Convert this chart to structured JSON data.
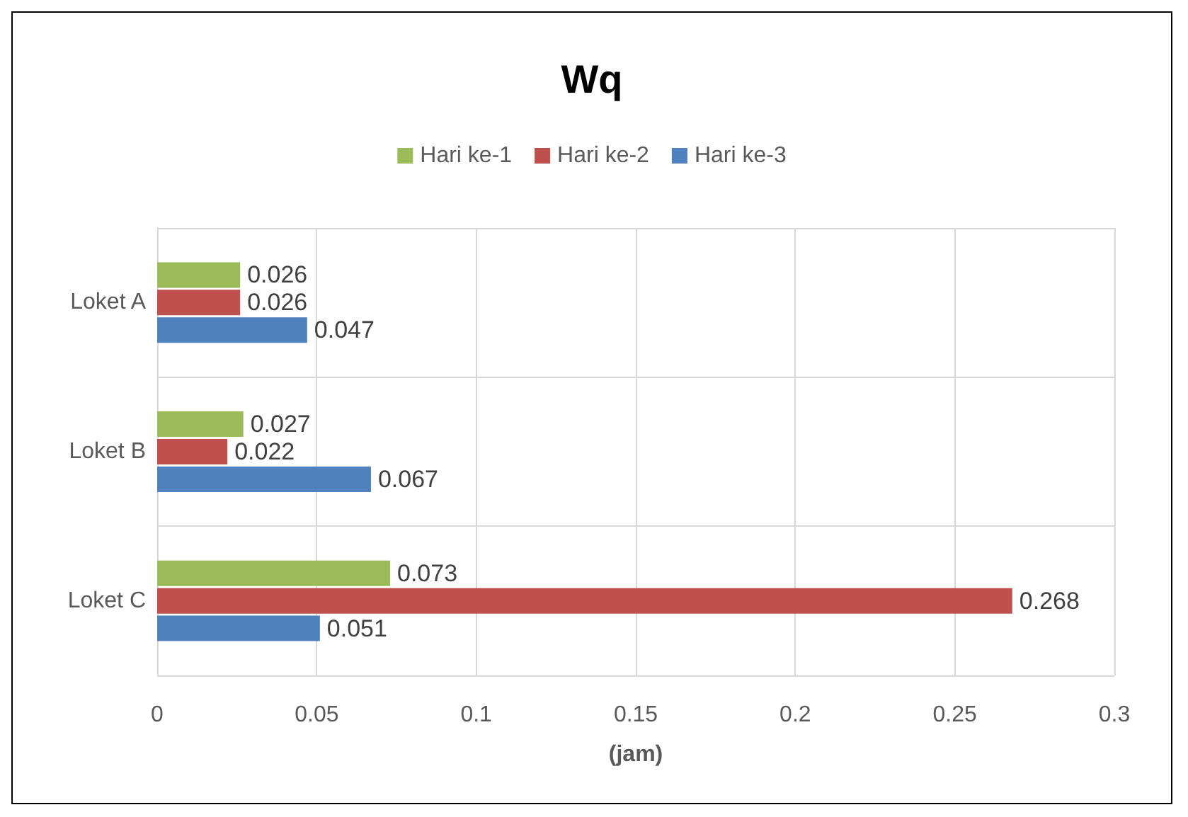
{
  "chart_data": {
    "type": "bar",
    "orientation": "horizontal",
    "title": "Wq",
    "xlabel": "(jam)",
    "categories": [
      "Loket A",
      "Loket B",
      "Loket C"
    ],
    "series": [
      {
        "name": "Hari ke-1",
        "color": "#9bbb59",
        "values": [
          0.026,
          0.027,
          0.073
        ]
      },
      {
        "name": "Hari ke-2",
        "color": "#c0504d",
        "values": [
          0.026,
          0.022,
          0.268
        ]
      },
      {
        "name": "Hari ke-3",
        "color": "#4f81bd",
        "values": [
          0.047,
          0.067,
          0.051
        ]
      }
    ],
    "xlim": [
      0,
      0.3
    ],
    "xticks": [
      0,
      0.05,
      0.1,
      0.15,
      0.2,
      0.25,
      0.3
    ],
    "grid": true,
    "legend": "top",
    "data_labels": true
  }
}
